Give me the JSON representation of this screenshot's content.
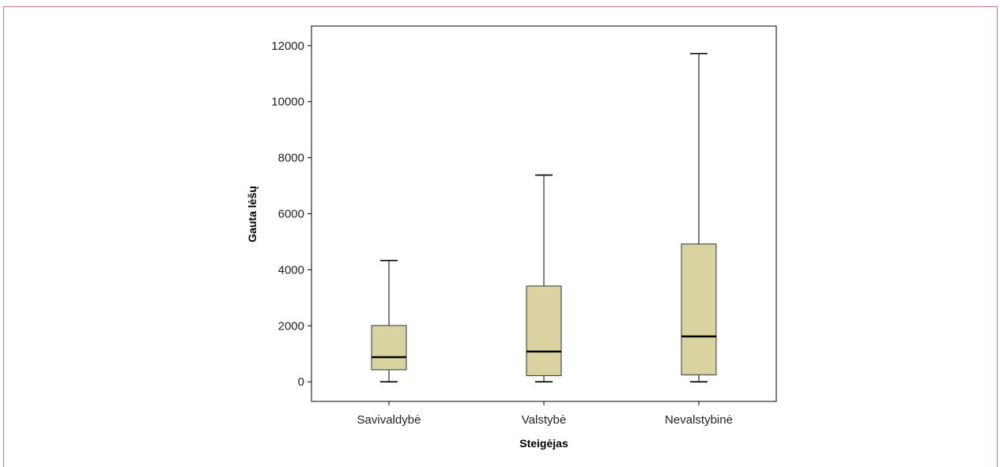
{
  "chart_data": {
    "type": "boxplot",
    "xlabel": "Steigėjas",
    "ylabel": "Gauta lėšų",
    "ylim": [
      -700,
      12700
    ],
    "yticks": [
      0,
      2000,
      4000,
      6000,
      8000,
      10000,
      12000
    ],
    "categories": [
      "Savivaldybė",
      "Valstybė",
      "Nevalstybinė"
    ],
    "boxes": [
      {
        "category": "Savivaldybė",
        "min": 0,
        "q1": 430,
        "median": 880,
        "q3": 2010,
        "max": 4330
      },
      {
        "category": "Valstybė",
        "min": 0,
        "q1": 220,
        "median": 1080,
        "q3": 3420,
        "max": 7380
      },
      {
        "category": "Nevalstybinė",
        "min": 0,
        "q1": 250,
        "median": 1620,
        "q3": 4920,
        "max": 11720
      }
    ],
    "box_color": "#d8d3a1",
    "grid": false
  }
}
